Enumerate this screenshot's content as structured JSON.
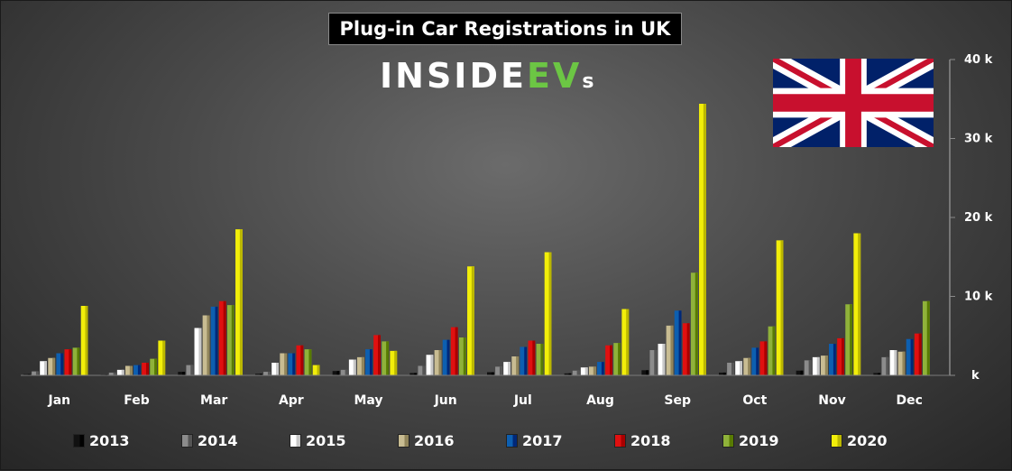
{
  "header": {
    "title": "Plug-in Car Registrations in UK"
  },
  "brand": {
    "part1": "INSIDE",
    "part2": "EV",
    "part3": "s"
  },
  "flag": {
    "icon": "uk-flag-icon"
  },
  "colors": {
    "2013": "#111111",
    "2014": "#8c8c8c",
    "2015": "#ffffff",
    "2016": "#c8bc92",
    "2017": "#0d5fb0",
    "2018": "#e01010",
    "2019": "#8fb23a",
    "2020": "#f2ee0a"
  },
  "chart_data": {
    "type": "bar",
    "title": "Plug-in Car Registrations in UK",
    "categories": [
      "Jan",
      "Feb",
      "Mar",
      "Apr",
      "May",
      "Jun",
      "Jul",
      "Aug",
      "Sep",
      "Oct",
      "Nov",
      "Dec"
    ],
    "ylim": [
      0,
      40000
    ],
    "yticks": [
      0,
      10000,
      20000,
      30000,
      40000
    ],
    "ytick_labels": [
      "k",
      "10 k",
      "20 k",
      "30 k",
      "40 k"
    ],
    "grid": false,
    "legend_position": "bottom",
    "series": [
      {
        "name": "2013",
        "values": [
          150,
          100,
          450,
          200,
          550,
          300,
          400,
          250,
          650,
          350,
          600,
          300
        ]
      },
      {
        "name": "2014",
        "values": [
          500,
          350,
          1300,
          450,
          700,
          1200,
          1100,
          600,
          3200,
          1600,
          1900,
          2300
        ]
      },
      {
        "name": "2015",
        "values": [
          1800,
          700,
          6000,
          1600,
          2000,
          2600,
          1700,
          1000,
          4000,
          1800,
          2300,
          3200
        ]
      },
      {
        "name": "2016",
        "values": [
          2200,
          1200,
          7600,
          2800,
          2300,
          3200,
          2400,
          1100,
          6300,
          2200,
          2500,
          3000
        ]
      },
      {
        "name": "2017",
        "values": [
          2800,
          1300,
          8700,
          2800,
          3300,
          4500,
          3600,
          1700,
          8200,
          3500,
          4000,
          4600
        ]
      },
      {
        "name": "2018",
        "values": [
          3300,
          1600,
          9400,
          3800,
          5100,
          6100,
          4400,
          3800,
          6600,
          4300,
          4700,
          5300
        ]
      },
      {
        "name": "2019",
        "values": [
          3500,
          2100,
          8900,
          3300,
          4300,
          4800,
          4000,
          4100,
          13000,
          6200,
          9000,
          9400
        ]
      },
      {
        "name": "2020",
        "values": [
          8800,
          4400,
          18500,
          1300,
          3100,
          13800,
          15600,
          8400,
          34400,
          17100,
          18000,
          null
        ]
      }
    ]
  }
}
